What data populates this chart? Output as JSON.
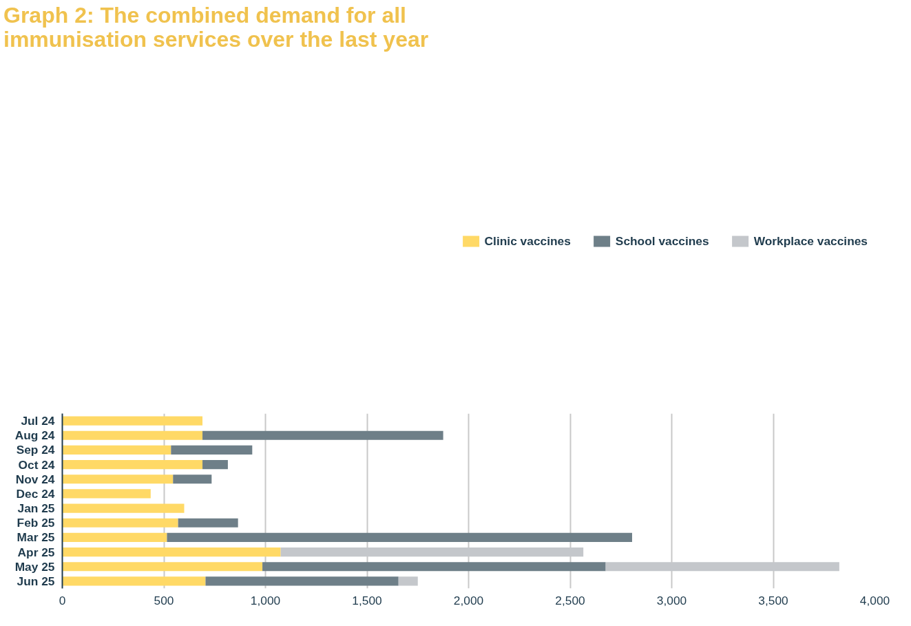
{
  "chart_data": {
    "type": "bar",
    "orientation": "horizontal",
    "stacked": true,
    "title": "Graph 2: The combined demand for all immunisation services over the last year",
    "categories": [
      "Jul 24",
      "Aug 24",
      "Sep 24",
      "Oct 24",
      "Nov 24",
      "Dec 24",
      "Jan 25",
      "Feb 25",
      "Mar 25",
      "Apr 25",
      "May 25",
      "Jun 25"
    ],
    "series": [
      {
        "name": "Clinic vaccines",
        "color": "#ffd966",
        "values": [
          690,
          690,
          535,
          690,
          545,
          435,
          600,
          570,
          515,
          1075,
          985,
          705
        ]
      },
      {
        "name": "School vaccines",
        "color": "#6e7f88",
        "values": [
          null,
          1185,
          400,
          125,
          190,
          null,
          null,
          295,
          2290,
          null,
          1690,
          950
        ]
      },
      {
        "name": "Workplace vaccines",
        "color": "#c4c7cb",
        "values": [
          null,
          null,
          null,
          null,
          null,
          null,
          null,
          null,
          null,
          1490,
          1150,
          95
        ]
      }
    ],
    "xlim": [
      0,
      4000
    ],
    "xticks": [
      {
        "value": 0,
        "label": "0"
      },
      {
        "value": 500,
        "label": "500"
      },
      {
        "value": 1000,
        "label": "1,000"
      },
      {
        "value": 1500,
        "label": "1,500"
      },
      {
        "value": 2000,
        "label": "2,000"
      },
      {
        "value": 2500,
        "label": "2,500"
      },
      {
        "value": 3000,
        "label": "3,000"
      },
      {
        "value": 3500,
        "label": "3,500"
      },
      {
        "value": 4000,
        "label": "4,000"
      }
    ],
    "grid": "x",
    "legend": "top"
  }
}
